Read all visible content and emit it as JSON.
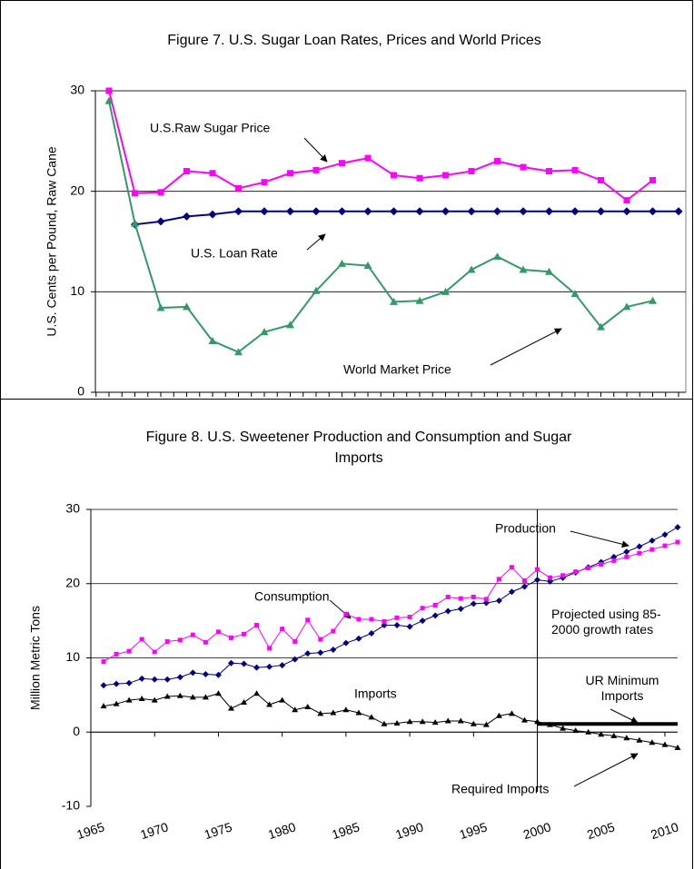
{
  "chart_data": [
    {
      "type": "line",
      "title": "Figure 7. U.S. Sugar Loan Rates, Prices and World Prices",
      "y_label": "U.S. Cents per Pound, Raw Cane",
      "categories": [
        null,
        null,
        null,
        null,
        null,
        null,
        null,
        null,
        null,
        null,
        null,
        null,
        null,
        null,
        null,
        null,
        null,
        null,
        null,
        null,
        null,
        null,
        null
      ],
      "series": [
        {
          "name": "U.S.Raw Sugar Price",
          "color": "#ff00ff",
          "marker": "square",
          "values": [
            30,
            19.8,
            19.9,
            22,
            21.8,
            20.3,
            20.9,
            21.8,
            22.1,
            22.8,
            23.3,
            21.6,
            21.3,
            21.6,
            22,
            23,
            22.4,
            22,
            22.1,
            21.1,
            19.1,
            21.1,
            null
          ]
        },
        {
          "name": "U.S. Loan Rate",
          "color": "#000080",
          "marker": "diamond",
          "values": [
            null,
            16.7,
            17,
            17.5,
            17.7,
            18,
            18,
            18,
            18,
            18,
            18,
            18,
            18,
            18,
            18,
            18,
            18,
            18,
            18,
            18,
            18,
            18,
            18
          ]
        },
        {
          "name": "World Market Price",
          "color": "#339966",
          "marker": "triangle",
          "values": [
            29,
            16.8,
            8.4,
            8.5,
            5.1,
            4,
            6,
            6.7,
            10.1,
            12.8,
            12.6,
            9,
            9.1,
            10,
            12.2,
            13.5,
            12.2,
            12,
            9.8,
            6.5,
            8.5,
            9.1,
            null
          ]
        }
      ],
      "ylim": [
        0,
        30
      ],
      "yticks": [
        0,
        10,
        20,
        30
      ],
      "grid": true
    },
    {
      "type": "line",
      "title": "Figure 8. U.S. Sweetener Production and Consumption and Sugar Imports",
      "y_label": "Million Metric Tons",
      "x": [
        1966,
        1967,
        1968,
        1969,
        1970,
        1971,
        1972,
        1973,
        1974,
        1975,
        1976,
        1977,
        1978,
        1979,
        1980,
        1981,
        1982,
        1983,
        1984,
        1985,
        1986,
        1987,
        1988,
        1989,
        1990,
        1991,
        1992,
        1993,
        1994,
        1995,
        1996,
        1997,
        1998,
        1999,
        2000,
        2001,
        2002,
        2003,
        2004,
        2005,
        2006,
        2007,
        2008,
        2009,
        2010,
        2011
      ],
      "series": [
        {
          "name": "Production",
          "color": "#000080",
          "marker": "diamond",
          "values": [
            6.3,
            6.5,
            6.6,
            7.2,
            7.1,
            7.1,
            7.4,
            8.0,
            7.8,
            7.7,
            9.3,
            9.2,
            8.7,
            8.8,
            9.0,
            9.8,
            10.6,
            10.7,
            11.1,
            12.0,
            12.6,
            13.3,
            14.4,
            14.4,
            14.2,
            15.0,
            15.7,
            16.3,
            16.6,
            17.3,
            17.4,
            17.7,
            18.9,
            19.6,
            20.5,
            20.3,
            20.8,
            21.5,
            22.2,
            22.9,
            23.6,
            24.3,
            25.0,
            25.8,
            26.6,
            27.6
          ]
        },
        {
          "name": "Consumption",
          "color": "#ff00ff",
          "marker": "square",
          "values": [
            9.5,
            10.5,
            10.9,
            12.5,
            10.8,
            12.2,
            12.4,
            13.1,
            12.1,
            13.5,
            12.7,
            13.2,
            14.4,
            11.3,
            13.9,
            12.2,
            15.1,
            12.5,
            13.6,
            15.9,
            15.2,
            15.2,
            14.9,
            15.4,
            15.5,
            16.7,
            17.1,
            18.2,
            18.0,
            18.2,
            17.9,
            20.6,
            22.2,
            20.4,
            21.9,
            20.8,
            21.1,
            21.6,
            22.1,
            22.6,
            23.1,
            23.6,
            24.1,
            24.6,
            25.1,
            25.6
          ]
        },
        {
          "name": "Imports",
          "color": "#000000",
          "marker": "triangle",
          "values": [
            3.5,
            3.8,
            4.3,
            4.5,
            4.3,
            4.8,
            4.9,
            4.7,
            4.7,
            5.2,
            3.2,
            4.0,
            5.2,
            3.7,
            4.3,
            3.0,
            3.4,
            2.5,
            2.6,
            3.0,
            2.6,
            2.0,
            1.1,
            1.2,
            1.4,
            1.4,
            1.3,
            1.5,
            1.5,
            1.1,
            1.0,
            2.2,
            2.5,
            1.6,
            1.4,
            1.0,
            0.5,
            0.2,
            0,
            -0.3,
            -0.5,
            -0.8,
            -1.1,
            -1.4,
            -1.7,
            -2.1
          ]
        },
        {
          "name": "UR Minimum Imports",
          "color": "#000000",
          "marker": null,
          "line_width": 4,
          "values": [
            null,
            null,
            null,
            null,
            null,
            null,
            null,
            null,
            null,
            null,
            null,
            null,
            null,
            null,
            null,
            null,
            null,
            null,
            null,
            null,
            null,
            null,
            null,
            null,
            null,
            null,
            null,
            null,
            null,
            null,
            null,
            null,
            null,
            null,
            1.1,
            1.1,
            1.1,
            1.1,
            1.1,
            1.1,
            1.1,
            1.1,
            1.1,
            1.1,
            1.1,
            1.1
          ]
        }
      ],
      "annotations": [
        "Projected using 85-2000 growth rates",
        "Required Imports"
      ],
      "reference_x": 2000,
      "xlim": [
        1965,
        2011
      ],
      "xticks": [
        1965,
        1970,
        1975,
        1980,
        1985,
        1990,
        1995,
        2000,
        2005,
        2010
      ],
      "ylim": [
        -10,
        30
      ],
      "yticks": [
        -10,
        0,
        10,
        20,
        30
      ],
      "grid": true
    }
  ]
}
